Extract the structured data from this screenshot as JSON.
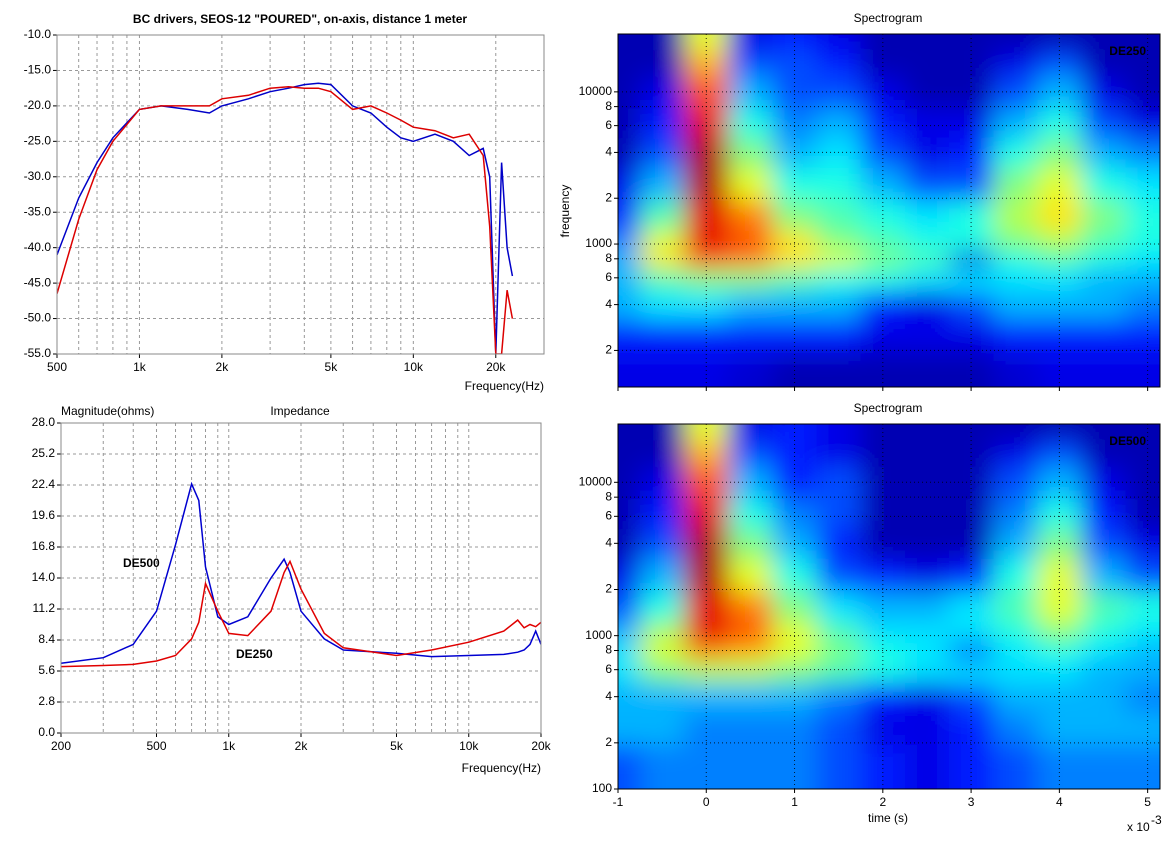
{
  "chart_data": [
    {
      "type": "line",
      "title": "BC drivers, SEOS-12 \"POURED\", on-axis, distance 1 meter",
      "x_label": "Frequency(Hz)",
      "xlog": true,
      "xlim": [
        500,
        30000
      ],
      "xticks": [
        500,
        {
          "value": 1000,
          "label": "1k"
        },
        {
          "value": 2000,
          "label": "2k"
        },
        {
          "value": 5000,
          "label": "5k"
        },
        {
          "value": 10000,
          "label": "10k"
        },
        {
          "value": 20000,
          "label": "20k"
        }
      ],
      "xminor": [
        600,
        700,
        800,
        900,
        3000,
        4000,
        6000,
        7000,
        8000,
        9000
      ],
      "ylim": [
        -55,
        -10
      ],
      "yticks": [
        {
          "value": -10,
          "label": "-10.0"
        },
        {
          "value": -15,
          "label": "-15.0"
        },
        {
          "value": -20,
          "label": "-20.0"
        },
        {
          "value": -25,
          "label": "-25.0"
        },
        {
          "value": -30,
          "label": "-30.0"
        },
        {
          "value": -35,
          "label": "-35.0"
        },
        {
          "value": -40,
          "label": "-40.0"
        },
        {
          "value": -45,
          "label": "-45.0"
        },
        {
          "value": -50,
          "label": "-50.0"
        },
        {
          "value": -55,
          "label": "-55.0"
        }
      ],
      "grid": true,
      "x": [
        500,
        600,
        700,
        800,
        1000,
        1200,
        1500,
        1800,
        2000,
        2500,
        3000,
        3500,
        4000,
        4500,
        5000,
        6000,
        7000,
        8000,
        9000,
        10000,
        12000,
        14000,
        16000,
        18000,
        19000,
        20000,
        21000,
        22000,
        23000
      ],
      "series": [
        {
          "color": "#0000c8",
          "values": [
            -41,
            -33,
            -28,
            -24.5,
            -20.5,
            -20,
            -20.5,
            -21,
            -20,
            -19,
            -18,
            -17.5,
            -17,
            -16.8,
            -17,
            -20,
            -21,
            -23,
            -24.5,
            -25,
            -24,
            -25,
            -27,
            -26,
            -30,
            -55,
            -28,
            -40,
            -44
          ]
        },
        {
          "color": "#dc0000",
          "values": [
            -46.5,
            -36,
            -29,
            -25,
            -20.5,
            -20,
            -20,
            -20,
            -19,
            -18.5,
            -17.5,
            -17.3,
            -17.5,
            -17.5,
            -18,
            -20.5,
            -20,
            -21,
            -22,
            -23,
            -23.5,
            -24.5,
            -24,
            -27,
            -37,
            -55,
            -55,
            -46,
            -50
          ]
        }
      ]
    },
    {
      "type": "line",
      "title": "Impedance",
      "y_label": "Magnitude(ohms)",
      "x_label": "Frequency(Hz)",
      "xlog": true,
      "xlim": [
        200,
        20000
      ],
      "xticks": [
        200,
        500,
        {
          "value": 1000,
          "label": "1k"
        },
        {
          "value": 2000,
          "label": "2k"
        },
        {
          "value": 5000,
          "label": "5k"
        },
        {
          "value": 10000,
          "label": "10k"
        },
        {
          "value": 20000,
          "label": "20k"
        }
      ],
      "xminor": [
        300,
        400,
        600,
        700,
        800,
        900,
        3000,
        4000,
        6000,
        7000,
        8000,
        9000
      ],
      "ylim": [
        0,
        28
      ],
      "yticks": [
        {
          "value": 0,
          "label": "0.0"
        },
        2.8,
        5.6,
        8.4,
        11.2,
        {
          "value": 14,
          "label": "14.0"
        },
        16.8,
        19.6,
        22.4,
        25.2,
        {
          "value": 28,
          "label": "28.0"
        }
      ],
      "grid": true,
      "x": [
        200,
        300,
        400,
        500,
        600,
        700,
        750,
        800,
        900,
        1000,
        1200,
        1500,
        1700,
        1800,
        2000,
        2500,
        3000,
        5000,
        7000,
        10000,
        14000,
        16000,
        17000,
        18000,
        19000,
        20000
      ],
      "series": [
        {
          "name": "DE500",
          "color": "#0000d0",
          "values": [
            6.3,
            6.8,
            8,
            11,
            17,
            22.5,
            21,
            15,
            10.5,
            9.8,
            10.5,
            14,
            15.7,
            14.5,
            11,
            8.5,
            7.5,
            7.2,
            6.9,
            7,
            7.1,
            7.3,
            7.5,
            8,
            9.2,
            8
          ]
        },
        {
          "name": "DE250",
          "color": "#e00000",
          "values": [
            6,
            6.1,
            6.2,
            6.5,
            7,
            8.5,
            10,
            13.5,
            11,
            9,
            8.8,
            11,
            14.5,
            15.5,
            13,
            9,
            7.7,
            7,
            7.5,
            8.2,
            9.2,
            10.2,
            9.5,
            9.8,
            9.6,
            10
          ]
        }
      ]
    },
    {
      "type": "heatmap",
      "title": "Spectrogram",
      "y_label": "frequency",
      "label": "DE250",
      "colormap": "jet",
      "zlim": [
        0,
        10
      ],
      "xlim": [
        -1,
        5.14
      ],
      "xticks": [
        -1,
        0,
        1,
        2,
        3,
        4,
        5
      ],
      "show_xtick_labels": false,
      "ylog": true,
      "ylim": [
        115,
        24000
      ],
      "yticks": [
        {
          "value": 200,
          "label": "2"
        },
        {
          "value": 400,
          "label": "4"
        },
        {
          "value": 600,
          "label": "6"
        },
        {
          "value": 800,
          "label": "8"
        },
        1000,
        {
          "value": 2000,
          "label": "2"
        },
        {
          "value": 4000,
          "label": "4"
        },
        {
          "value": 6000,
          "label": "6"
        },
        {
          "value": 8000,
          "label": "8"
        },
        10000
      ],
      "grid": true,
      "x": [
        -1,
        -0.5,
        0,
        0.5,
        1,
        1.5,
        2,
        2.5,
        3,
        3.5,
        4,
        4.5,
        5
      ],
      "y": [
        22000,
        16000,
        10000,
        6000,
        4000,
        2500,
        1500,
        1000,
        800,
        600,
        400,
        250,
        150
      ],
      "z": [
        [
          0.5,
          0.5,
          6,
          1,
          1.5,
          1,
          0.5,
          0.5,
          0.5,
          0.5,
          0.5,
          0.5,
          0.5
        ],
        [
          0.5,
          0.5,
          7,
          2,
          2,
          1.5,
          0.5,
          0.5,
          0.5,
          1,
          2,
          0.5,
          0.5
        ],
        [
          0.5,
          1,
          8,
          3,
          2,
          2,
          1,
          0.5,
          0.5,
          2,
          3,
          1,
          0.5
        ],
        [
          0.5,
          1.5,
          9,
          4,
          2.5,
          3,
          1.5,
          1,
          1,
          3,
          4,
          2,
          1
        ],
        [
          0.5,
          2,
          9.5,
          5,
          3,
          3.5,
          2,
          1,
          1.5,
          4,
          5,
          3,
          2.5
        ],
        [
          1,
          3,
          9.5,
          6,
          4,
          4,
          3,
          2,
          2,
          5,
          6,
          4,
          3.5
        ],
        [
          1.5,
          4.5,
          9,
          7.5,
          5,
          4.5,
          4,
          3.5,
          4,
          5.5,
          6.5,
          5,
          4
        ],
        [
          2.5,
          6,
          9,
          8,
          6.5,
          5,
          4.5,
          4,
          4,
          5,
          5.5,
          4.5,
          4
        ],
        [
          3,
          6.5,
          8,
          7.5,
          6.5,
          6,
          5,
          4.5,
          1,
          4,
          4.5,
          4,
          3.5
        ],
        [
          3,
          4.5,
          5,
          5,
          4.5,
          4,
          4,
          3.5,
          3.5,
          3.5,
          3.5,
          3,
          3
        ],
        [
          3,
          3.5,
          3.5,
          3,
          3,
          3,
          1.5,
          1,
          2,
          3,
          3,
          3,
          2.5
        ],
        [
          1.5,
          1.5,
          1.5,
          1.5,
          1.5,
          1.5,
          1,
          1,
          1,
          1.5,
          1.5,
          1.5,
          1.5
        ],
        [
          1,
          1,
          1,
          0.8,
          0.5,
          0.5,
          0.5,
          0.5,
          0.5,
          0.8,
          1,
          1,
          1
        ]
      ]
    },
    {
      "type": "heatmap",
      "title": "Spectrogram",
      "label": "DE500",
      "colormap": "jet",
      "zlim": [
        0,
        10
      ],
      "x_label": "time (s)",
      "x_exponent_base": "x 10",
      "x_exponent": "-3",
      "xlim": [
        -1,
        5.14
      ],
      "xticks": [
        -1,
        0,
        1,
        2,
        3,
        4,
        5
      ],
      "show_xtick_labels": true,
      "ylog": true,
      "ylim": [
        100,
        24000
      ],
      "yticks": [
        100,
        {
          "value": 200,
          "label": "2"
        },
        {
          "value": 400,
          "label": "4"
        },
        {
          "value": 600,
          "label": "6"
        },
        {
          "value": 800,
          "label": "8"
        },
        1000,
        {
          "value": 2000,
          "label": "2"
        },
        {
          "value": 4000,
          "label": "4"
        },
        {
          "value": 6000,
          "label": "6"
        },
        {
          "value": 8000,
          "label": "8"
        },
        10000
      ],
      "grid": true,
      "x": [
        -1,
        -0.5,
        0,
        0.5,
        1,
        1.5,
        2,
        2.5,
        3,
        3.5,
        4,
        4.5,
        5
      ],
      "y": [
        22000,
        16000,
        10000,
        6000,
        4000,
        2500,
        1500,
        1000,
        800,
        600,
        400,
        250,
        150
      ],
      "z": [
        [
          0.5,
          0.5,
          6,
          1,
          1.5,
          1,
          0.5,
          0.5,
          0.5,
          0.5,
          0.5,
          0.5,
          0.5
        ],
        [
          0.5,
          0.5,
          7,
          2,
          1.5,
          1,
          0.5,
          0.5,
          0.5,
          1,
          2,
          0.5,
          0.5
        ],
        [
          0.5,
          1,
          8,
          3,
          1.5,
          2,
          0.5,
          0.5,
          0.5,
          2,
          3,
          1,
          0.5
        ],
        [
          0.5,
          1.5,
          9,
          4,
          2.5,
          2,
          0.5,
          0.5,
          0.5,
          2.5,
          4,
          1.5,
          0.5
        ],
        [
          0.5,
          2,
          9.5,
          5,
          3,
          1.5,
          0.5,
          0.5,
          0.5,
          3,
          5,
          2,
          1
        ],
        [
          1,
          3,
          9.5,
          6,
          4,
          2,
          1.5,
          1,
          1.5,
          4,
          6,
          3,
          2
        ],
        [
          2,
          4,
          9,
          7.5,
          5,
          3.5,
          3,
          3,
          3.5,
          4.5,
          6,
          4.5,
          4
        ],
        [
          3,
          5.5,
          9,
          8,
          6,
          4.5,
          3.5,
          3.5,
          3.5,
          4,
          5,
          4,
          3.5
        ],
        [
          3.5,
          6,
          7.5,
          7,
          6,
          5,
          4,
          3.5,
          1.5,
          3.5,
          4,
          3.5,
          3
        ],
        [
          3.5,
          5,
          5.5,
          5.5,
          5,
          4.5,
          4,
          3.5,
          3.5,
          3.5,
          3.5,
          3,
          3
        ],
        [
          3,
          3,
          3,
          3,
          3,
          2.5,
          1.5,
          1,
          2,
          3,
          3,
          3,
          2.5
        ],
        [
          3,
          3,
          2.5,
          2.5,
          2.5,
          2,
          1,
          1,
          1.5,
          2.5,
          3,
          3,
          3
        ],
        [
          2,
          2.5,
          2.5,
          2.5,
          2.5,
          2,
          1.5,
          1,
          1.5,
          2,
          2.5,
          2.5,
          2.5
        ]
      ]
    }
  ]
}
